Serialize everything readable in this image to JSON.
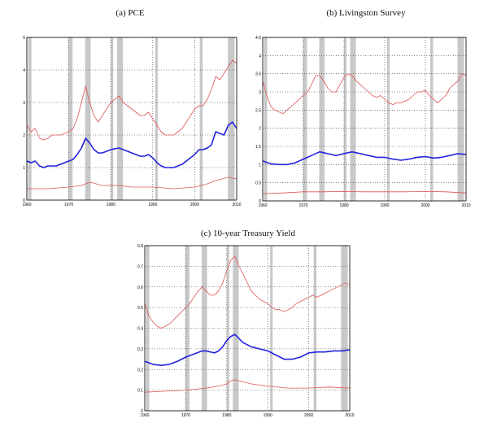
{
  "chart_data": [
    {
      "type": "line",
      "title": "(a) PCE",
      "xlabel": "",
      "ylabel": "",
      "xlim": [
        1960,
        2010
      ],
      "ylim": [
        0,
        5
      ],
      "xticks": [
        1960,
        1970,
        1980,
        1990,
        2000,
        2010
      ],
      "xtick_labels": [
        "1960",
        "1970",
        "1980",
        "1990",
        "2000",
        "2010"
      ],
      "yticks": [
        0,
        1,
        2,
        3,
        4,
        5
      ],
      "ytick_labels": [
        "0",
        "1",
        "2",
        "3",
        "4",
        "5"
      ],
      "grid": "dotted",
      "recessions": [
        [
          1960.3,
          1961.1
        ],
        [
          1969.9,
          1970.9
        ],
        [
          1973.9,
          1975.2
        ],
        [
          1980.0,
          1980.6
        ],
        [
          1981.5,
          1982.9
        ],
        [
          1990.6,
          1991.2
        ],
        [
          2001.2,
          2001.9
        ],
        [
          2007.9,
          2009.5
        ]
      ],
      "series": [
        {
          "color": "#e05555",
          "style": "thin",
          "x": [
            1960,
            1961,
            1962,
            1963,
            1964,
            1965,
            1966,
            1967,
            1968,
            1969,
            1970,
            1971,
            1972,
            1973,
            1974,
            1975,
            1976,
            1977,
            1978,
            1979,
            1980,
            1981,
            1982,
            1983,
            1984,
            1985,
            1986,
            1987,
            1988,
            1989,
            1990,
            1991,
            1992,
            1993,
            1994,
            1995,
            1996,
            1997,
            1998,
            1999,
            2000,
            2001,
            2002,
            2003,
            2004,
            2005,
            2006,
            2007,
            2008,
            2009,
            2010
          ],
          "values": [
            2.3,
            2.1,
            2.2,
            1.9,
            1.85,
            1.9,
            2.0,
            2.0,
            2.0,
            2.05,
            2.1,
            2.2,
            2.5,
            3.0,
            3.5,
            3.0,
            2.6,
            2.4,
            2.6,
            2.8,
            3.0,
            3.1,
            3.2,
            3.0,
            2.9,
            2.8,
            2.7,
            2.6,
            2.6,
            2.7,
            2.5,
            2.3,
            2.1,
            2.0,
            2.0,
            2.0,
            2.1,
            2.2,
            2.4,
            2.6,
            2.8,
            2.9,
            2.9,
            3.1,
            3.4,
            3.8,
            3.7,
            3.9,
            4.1,
            4.3,
            4.2
          ]
        },
        {
          "color": "#2222dd",
          "style": "thick",
          "x": [
            1960,
            1961,
            1962,
            1963,
            1964,
            1965,
            1966,
            1967,
            1968,
            1969,
            1970,
            1971,
            1972,
            1973,
            1974,
            1975,
            1976,
            1977,
            1978,
            1979,
            1980,
            1981,
            1982,
            1983,
            1984,
            1985,
            1986,
            1987,
            1988,
            1989,
            1990,
            1991,
            1992,
            1993,
            1994,
            1995,
            1996,
            1997,
            1998,
            1999,
            2000,
            2001,
            2002,
            2003,
            2004,
            2005,
            2006,
            2007,
            2008,
            2009,
            2010
          ],
          "values": [
            1.2,
            1.15,
            1.2,
            1.05,
            1.0,
            1.05,
            1.05,
            1.05,
            1.1,
            1.15,
            1.2,
            1.25,
            1.4,
            1.6,
            1.9,
            1.75,
            1.55,
            1.45,
            1.45,
            1.5,
            1.55,
            1.58,
            1.6,
            1.55,
            1.5,
            1.45,
            1.4,
            1.35,
            1.35,
            1.4,
            1.3,
            1.15,
            1.05,
            1.0,
            1.0,
            1.0,
            1.05,
            1.1,
            1.2,
            1.3,
            1.4,
            1.55,
            1.55,
            1.6,
            1.7,
            2.1,
            2.05,
            2.0,
            2.3,
            2.4,
            2.2
          ]
        },
        {
          "color": "#e05555",
          "style": "thin",
          "x": [
            1960,
            1965,
            1970,
            1973,
            1975,
            1978,
            1982,
            1985,
            1990,
            1995,
            2000,
            2003,
            2005,
            2008,
            2010
          ],
          "values": [
            0.35,
            0.35,
            0.4,
            0.45,
            0.55,
            0.45,
            0.45,
            0.4,
            0.4,
            0.35,
            0.4,
            0.5,
            0.6,
            0.7,
            0.65
          ]
        }
      ]
    },
    {
      "type": "line",
      "title": "(b) Livingston Survey",
      "xlabel": "",
      "ylabel": "",
      "xlim": [
        1960,
        2010
      ],
      "ylim": [
        0,
        4.5
      ],
      "xticks": [
        1960,
        1970,
        1980,
        1990,
        2000,
        2010
      ],
      "xtick_labels": [
        "1960",
        "1970",
        "1980",
        "1990",
        "2000",
        "2010"
      ],
      "yticks": [
        0,
        0.5,
        1,
        1.5,
        2,
        2.5,
        3,
        3.5,
        4,
        4.5
      ],
      "ytick_labels": [
        "0",
        "0.5",
        "1",
        "1.5",
        "2",
        "2.5",
        "3",
        "3.5",
        "4",
        "4.5"
      ],
      "grid": "dotted",
      "recessions": [
        [
          1960.3,
          1961.1
        ],
        [
          1969.9,
          1970.9
        ],
        [
          1973.9,
          1975.2
        ],
        [
          1980.0,
          1980.6
        ],
        [
          1981.5,
          1982.9
        ],
        [
          1990.6,
          1991.2
        ],
        [
          2001.2,
          2001.9
        ],
        [
          2007.9,
          2009.5
        ]
      ],
      "series": [
        {
          "color": "#e05555",
          "style": "thin",
          "x": [
            1960,
            1961,
            1962,
            1963,
            1964,
            1965,
            1966,
            1967,
            1968,
            1969,
            1970,
            1971,
            1972,
            1973,
            1974,
            1975,
            1976,
            1977,
            1978,
            1979,
            1980,
            1981,
            1982,
            1983,
            1984,
            1985,
            1986,
            1987,
            1988,
            1989,
            1990,
            1991,
            1992,
            1993,
            1994,
            1995,
            1996,
            1997,
            1998,
            1999,
            2000,
            2001,
            2002,
            2003,
            2004,
            2005,
            2006,
            2007,
            2008,
            2009,
            2010
          ],
          "values": [
            3.3,
            2.9,
            2.6,
            2.5,
            2.45,
            2.4,
            2.5,
            2.6,
            2.7,
            2.8,
            2.9,
            3.0,
            3.2,
            3.45,
            3.45,
            3.3,
            3.1,
            3.0,
            3.0,
            3.2,
            3.4,
            3.5,
            3.45,
            3.3,
            3.2,
            3.1,
            3.0,
            2.9,
            2.85,
            2.9,
            2.8,
            2.7,
            2.65,
            2.7,
            2.7,
            2.75,
            2.8,
            2.9,
            3.0,
            3.0,
            3.05,
            2.9,
            2.8,
            2.7,
            2.8,
            2.9,
            3.1,
            3.2,
            3.3,
            3.5,
            3.45
          ]
        },
        {
          "color": "#2222dd",
          "style": "thick",
          "x": [
            1960,
            1962,
            1964,
            1966,
            1968,
            1970,
            1972,
            1974,
            1976,
            1978,
            1980,
            1982,
            1984,
            1986,
            1988,
            1990,
            1992,
            1994,
            1996,
            1998,
            2000,
            2002,
            2004,
            2006,
            2008,
            2010
          ],
          "values": [
            1.1,
            1.02,
            1.0,
            1.0,
            1.05,
            1.15,
            1.25,
            1.35,
            1.3,
            1.25,
            1.3,
            1.35,
            1.3,
            1.25,
            1.2,
            1.2,
            1.15,
            1.12,
            1.15,
            1.2,
            1.22,
            1.18,
            1.2,
            1.25,
            1.3,
            1.28
          ]
        },
        {
          "color": "#e05555",
          "style": "thin",
          "x": [
            1960,
            1965,
            1970,
            1975,
            1980,
            1985,
            1990,
            1995,
            2000,
            2005,
            2010
          ],
          "values": [
            0.2,
            0.22,
            0.25,
            0.25,
            0.26,
            0.25,
            0.25,
            0.25,
            0.26,
            0.25,
            0.22
          ]
        }
      ]
    },
    {
      "type": "line",
      "title": "(c) 10-year Treasury Yield",
      "xlabel": "",
      "ylabel": "",
      "xlim": [
        1960,
        2010
      ],
      "ylim": [
        0,
        0.8
      ],
      "xticks": [
        1960,
        1970,
        1980,
        1990,
        2000,
        2010
      ],
      "xtick_labels": [
        "1960",
        "1970",
        "1980",
        "1990",
        "2000",
        "2010"
      ],
      "yticks": [
        0,
        0.1,
        0.2,
        0.3,
        0.4,
        0.5,
        0.6,
        0.7,
        0.8
      ],
      "ytick_labels": [
        "0",
        "0.1",
        "0.2",
        "0.3",
        "0.4",
        "0.5",
        "0.6",
        "0.7",
        "0.8"
      ],
      "grid": "dotted",
      "recessions": [
        [
          1960.3,
          1961.1
        ],
        [
          1969.9,
          1970.9
        ],
        [
          1973.9,
          1975.2
        ],
        [
          1980.0,
          1980.6
        ],
        [
          1981.5,
          1982.9
        ],
        [
          1990.6,
          1991.2
        ],
        [
          2001.2,
          2001.9
        ],
        [
          2007.9,
          2009.5
        ]
      ],
      "series": [
        {
          "color": "#e05555",
          "style": "thin",
          "x": [
            1960,
            1961,
            1962,
            1963,
            1964,
            1965,
            1966,
            1967,
            1968,
            1969,
            1970,
            1971,
            1972,
            1973,
            1974,
            1975,
            1976,
            1977,
            1978,
            1979,
            1980,
            1981,
            1982,
            1983,
            1984,
            1985,
            1986,
            1987,
            1988,
            1989,
            1990,
            1991,
            1992,
            1993,
            1994,
            1995,
            1996,
            1997,
            1998,
            1999,
            2000,
            2001,
            2002,
            2003,
            2004,
            2005,
            2006,
            2007,
            2008,
            2009,
            2010
          ],
          "values": [
            0.52,
            0.46,
            0.43,
            0.41,
            0.4,
            0.41,
            0.42,
            0.44,
            0.46,
            0.48,
            0.5,
            0.52,
            0.55,
            0.58,
            0.6,
            0.58,
            0.56,
            0.56,
            0.58,
            0.62,
            0.68,
            0.73,
            0.75,
            0.7,
            0.66,
            0.62,
            0.58,
            0.56,
            0.54,
            0.53,
            0.52,
            0.5,
            0.49,
            0.49,
            0.48,
            0.49,
            0.5,
            0.52,
            0.53,
            0.54,
            0.55,
            0.56,
            0.55,
            0.56,
            0.57,
            0.58,
            0.59,
            0.6,
            0.61,
            0.62,
            0.61
          ]
        },
        {
          "color": "#2222dd",
          "style": "thick",
          "x": [
            1960,
            1962,
            1964,
            1966,
            1968,
            1970,
            1972,
            1974,
            1975,
            1976,
            1977,
            1978,
            1979,
            1980,
            1981,
            1982,
            1983,
            1984,
            1986,
            1988,
            1990,
            1992,
            1994,
            1996,
            1998,
            2000,
            2002,
            2004,
            2006,
            2008,
            2010
          ],
          "values": [
            0.24,
            0.225,
            0.22,
            0.225,
            0.24,
            0.26,
            0.275,
            0.29,
            0.29,
            0.285,
            0.28,
            0.29,
            0.31,
            0.34,
            0.36,
            0.37,
            0.35,
            0.33,
            0.31,
            0.3,
            0.29,
            0.27,
            0.25,
            0.25,
            0.26,
            0.28,
            0.285,
            0.285,
            0.29,
            0.29,
            0.295
          ]
        },
        {
          "color": "#e05555",
          "style": "thin",
          "x": [
            1960,
            1965,
            1970,
            1975,
            1978,
            1980,
            1981,
            1982,
            1984,
            1986,
            1990,
            1995,
            2000,
            2005,
            2010
          ],
          "values": [
            0.09,
            0.095,
            0.1,
            0.11,
            0.12,
            0.13,
            0.145,
            0.15,
            0.14,
            0.13,
            0.12,
            0.11,
            0.11,
            0.115,
            0.11
          ]
        }
      ]
    }
  ]
}
